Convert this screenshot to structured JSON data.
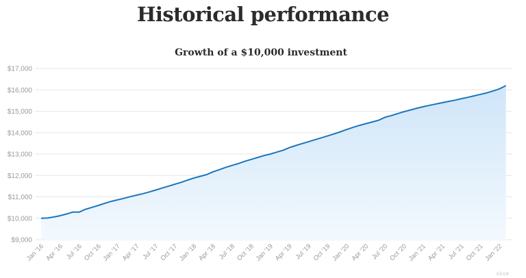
{
  "page": {
    "heading": "Historical performance",
    "watermark": "slice"
  },
  "colors": {
    "line": "#1b75bb",
    "area_top": "#cfe5f9",
    "area_bottom": "#f3f9fe",
    "grid": "#e6e6e6",
    "text": "#2b2b2b",
    "tick": "#9a9a9a"
  },
  "chart_data": {
    "type": "area",
    "title": "Growth of a $10,000 investment",
    "xlabel": "",
    "ylabel": "",
    "ylim": [
      9000,
      17000
    ],
    "yticks": [
      9000,
      10000,
      11000,
      12000,
      13000,
      14000,
      15000,
      16000,
      17000
    ],
    "ytick_labels": [
      "$9,000",
      "$10,000",
      "$11,000",
      "$12,000",
      "$13,000",
      "$14,000",
      "$15,000",
      "$16,000",
      "$17,000"
    ],
    "xticks": [
      "Jan '16",
      "Apr '16",
      "Jul '16",
      "Oct '16",
      "Jan '17",
      "Apr '17",
      "Jul '17",
      "Oct '17",
      "Jan '18",
      "Apr '18",
      "Jul '18",
      "Oct '18",
      "Jan '19",
      "Apr '19",
      "Jul '19",
      "Oct '19",
      "Jan '20",
      "Apr '20",
      "Jul '20",
      "Oct '20",
      "Jan '21",
      "Apr '21",
      "Jul '21",
      "Oct '21",
      "Jan '22"
    ],
    "grid": true,
    "legend": "none",
    "series": [
      {
        "x": [
          "2016-01",
          "2016-02",
          "2016-03",
          "2016-04",
          "2016-05",
          "2016-06",
          "2016-07",
          "2016-08",
          "2016-09",
          "2016-10",
          "2016-11",
          "2016-12",
          "2017-01",
          "2017-02",
          "2017-03",
          "2017-04",
          "2017-05",
          "2017-06",
          "2017-07",
          "2017-08",
          "2017-09",
          "2017-10",
          "2017-11",
          "2017-12",
          "2018-01",
          "2018-02",
          "2018-03",
          "2018-04",
          "2018-05",
          "2018-06",
          "2018-07",
          "2018-08",
          "2018-09",
          "2018-10",
          "2018-11",
          "2018-12",
          "2019-01",
          "2019-02",
          "2019-03",
          "2019-04",
          "2019-05",
          "2019-06",
          "2019-07",
          "2019-08",
          "2019-09",
          "2019-10",
          "2019-11",
          "2019-12",
          "2020-01",
          "2020-02",
          "2020-03",
          "2020-04",
          "2020-05",
          "2020-06",
          "2020-07",
          "2020-08",
          "2020-09",
          "2020-10",
          "2020-11",
          "2020-12",
          "2021-01",
          "2021-02",
          "2021-03",
          "2021-04",
          "2021-05",
          "2021-06",
          "2021-07",
          "2021-08",
          "2021-09",
          "2021-10",
          "2021-11",
          "2021-12",
          "2022-01",
          "2022-02"
        ],
        "values": [
          10000,
          10010,
          10060,
          10120,
          10200,
          10290,
          10290,
          10420,
          10510,
          10600,
          10700,
          10790,
          10860,
          10930,
          11010,
          11080,
          11150,
          11230,
          11320,
          11410,
          11500,
          11590,
          11680,
          11780,
          11880,
          11960,
          12040,
          12170,
          12270,
          12380,
          12470,
          12560,
          12660,
          12750,
          12840,
          12930,
          13000,
          13090,
          13180,
          13300,
          13400,
          13490,
          13580,
          13670,
          13760,
          13850,
          13940,
          14040,
          14150,
          14250,
          14340,
          14420,
          14500,
          14580,
          14720,
          14800,
          14890,
          14980,
          15060,
          15140,
          15210,
          15280,
          15340,
          15400,
          15460,
          15520,
          15590,
          15650,
          15720,
          15790,
          15860,
          15950,
          16050,
          16200
        ]
      }
    ]
  }
}
